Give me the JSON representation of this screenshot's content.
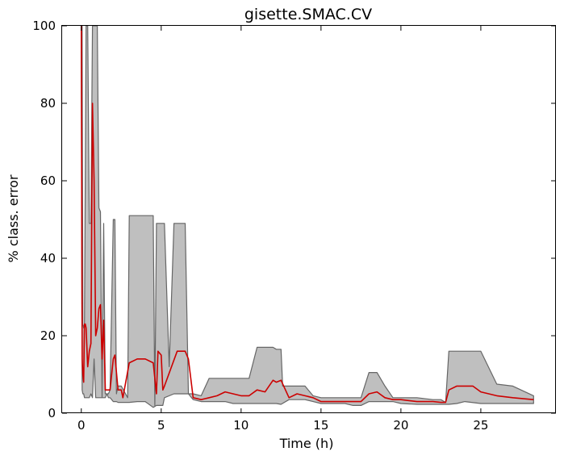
{
  "chart_data": {
    "type": "area",
    "title": "gisette.SMAC.CV",
    "xlabel": "Time (h)",
    "ylabel": "% class. error",
    "xlim": [
      -1.2,
      29.7
    ],
    "ylim": [
      0,
      100
    ],
    "xticks": [
      0,
      5,
      10,
      15,
      20,
      25
    ],
    "yticks": [
      0,
      20,
      40,
      60,
      80,
      100
    ],
    "grid": false,
    "legend": "none",
    "colors": {
      "median_line": "#cc0000",
      "band_fill": "#bfbfbf",
      "band_edge": "#666666"
    },
    "series": [
      {
        "role": "median",
        "x": [
          0,
          0.05,
          0.1,
          0.15,
          0.2,
          0.25,
          0.3,
          0.4,
          0.5,
          0.6,
          0.7,
          0.75,
          0.8,
          0.9,
          1.0,
          1.1,
          1.2,
          1.3,
          1.4,
          1.5,
          1.6,
          1.7,
          1.8,
          2.0,
          2.1,
          2.3,
          2.5,
          2.6,
          3.0,
          3.5,
          4.0,
          4.5,
          4.7,
          4.8,
          5.0,
          5.1,
          5.2,
          6.0,
          6.5,
          6.7,
          7.0,
          7.5,
          8.0,
          8.5,
          9.0,
          9.5,
          10.0,
          10.5,
          11.0,
          11.5,
          12.0,
          12.2,
          12.5,
          13.0,
          13.5,
          14.0,
          14.5,
          15.0,
          16.0,
          16.5,
          17.0,
          17.5,
          18.0,
          18.5,
          19.0,
          19.5,
          20.0,
          21.0,
          22.0,
          22.5,
          22.8,
          23.0,
          23.5,
          24.5,
          25.0,
          26.0,
          27.0,
          28.3
        ],
        "values": [
          100,
          14,
          10,
          8,
          23,
          23,
          22,
          12,
          16,
          18,
          80,
          70,
          60,
          20,
          22,
          27,
          28,
          14,
          24,
          6,
          6,
          6,
          6,
          14,
          15,
          6,
          6,
          4,
          13,
          14,
          14,
          13,
          5,
          16,
          15,
          6,
          7,
          16,
          16,
          14,
          4,
          3.5,
          4,
          4.5,
          5.5,
          5,
          4.5,
          4.5,
          6,
          5.5,
          8.5,
          8,
          8.5,
          4,
          5,
          4.5,
          4,
          3,
          3,
          3,
          3,
          3,
          5,
          5.5,
          4,
          3.5,
          3.5,
          3,
          3,
          2.8,
          2.8,
          6,
          7,
          7,
          5.5,
          4.5,
          4,
          3.5
        ]
      },
      {
        "role": "upper_band",
        "x": [
          0,
          0.05,
          0.1,
          0.15,
          0.2,
          0.3,
          0.4,
          0.5,
          0.6,
          0.7,
          0.8,
          0.9,
          1.0,
          1.1,
          1.2,
          1.3,
          1.4,
          1.5,
          1.6,
          1.7,
          1.8,
          2.0,
          2.1,
          2.2,
          2.3,
          2.5,
          2.9,
          3.0,
          4.5,
          4.6,
          4.7,
          5.0,
          5.1,
          5.2,
          5.5,
          5.8,
          6.5,
          6.7,
          7.0,
          7.5,
          8.0,
          8.5,
          9.0,
          9.5,
          10.0,
          10.5,
          11.0,
          11.5,
          12.0,
          12.2,
          12.5,
          12.6,
          13.0,
          14.0,
          14.5,
          15.0,
          16.0,
          16.5,
          17.0,
          17.5,
          18.0,
          18.5,
          19.0,
          19.5,
          20.0,
          21.0,
          22.0,
          22.5,
          22.8,
          23.0,
          24.0,
          25.0,
          26.0,
          27.0,
          28.3
        ],
        "values": [
          100,
          100,
          23,
          22,
          23,
          100,
          100,
          49,
          49,
          100,
          100,
          100,
          100,
          53,
          52,
          4,
          49,
          5,
          5,
          5,
          6,
          50,
          50,
          5,
          7,
          7,
          4,
          51,
          51,
          2,
          49,
          49,
          49,
          49,
          12,
          49,
          49,
          5,
          5,
          4.5,
          9,
          9,
          9,
          9,
          9,
          9,
          17,
          17,
          17,
          16.5,
          16.5,
          7,
          7,
          7,
          4.5,
          4,
          4,
          4,
          4,
          4,
          10.5,
          10.5,
          7,
          4,
          4,
          4,
          3.5,
          3.5,
          2.8,
          16,
          16,
          16,
          7.5,
          7,
          4.5
        ]
      },
      {
        "role": "lower_band",
        "x": [
          0,
          0.05,
          0.1,
          0.15,
          0.2,
          0.3,
          0.4,
          0.5,
          0.6,
          0.7,
          0.8,
          0.9,
          1.0,
          1.1,
          1.2,
          1.3,
          1.4,
          1.5,
          1.6,
          1.7,
          1.8,
          2.0,
          2.1,
          2.2,
          2.3,
          2.5,
          3.0,
          3.5,
          4.0,
          4.5,
          4.7,
          5.0,
          5.1,
          5.2,
          5.8,
          6.5,
          6.7,
          7.0,
          7.5,
          8.0,
          8.5,
          9.0,
          9.5,
          10.0,
          10.5,
          11.0,
          11.5,
          12.0,
          12.2,
          12.5,
          13.0,
          14.0,
          14.5,
          15.0,
          16.0,
          16.5,
          17.0,
          17.5,
          18.0,
          18.5,
          19.0,
          19.5,
          20.0,
          21.0,
          22.0,
          22.5,
          22.8,
          23.0,
          23.5,
          24.0,
          25.0,
          26.0,
          27.0,
          28.3
        ],
        "values": [
          90,
          6,
          5,
          5,
          4,
          4,
          4,
          4,
          5,
          4,
          14,
          4,
          4,
          4,
          4,
          4,
          4,
          4,
          5,
          4,
          4,
          3,
          3,
          3,
          2.8,
          2.8,
          2.8,
          3,
          3,
          1.5,
          2,
          2,
          2,
          4,
          5,
          5,
          5,
          3.5,
          3,
          3,
          3,
          3,
          2.5,
          2.5,
          2.5,
          2.5,
          2.5,
          2.5,
          2.5,
          2.3,
          3.5,
          3.5,
          3,
          2.5,
          2.5,
          2.5,
          2,
          2,
          3,
          3,
          3,
          3,
          2.5,
          2.3,
          2.3,
          2.3,
          2.3,
          2.3,
          2.5,
          3,
          2.5,
          2.5,
          2.5,
          2.5
        ]
      }
    ]
  }
}
